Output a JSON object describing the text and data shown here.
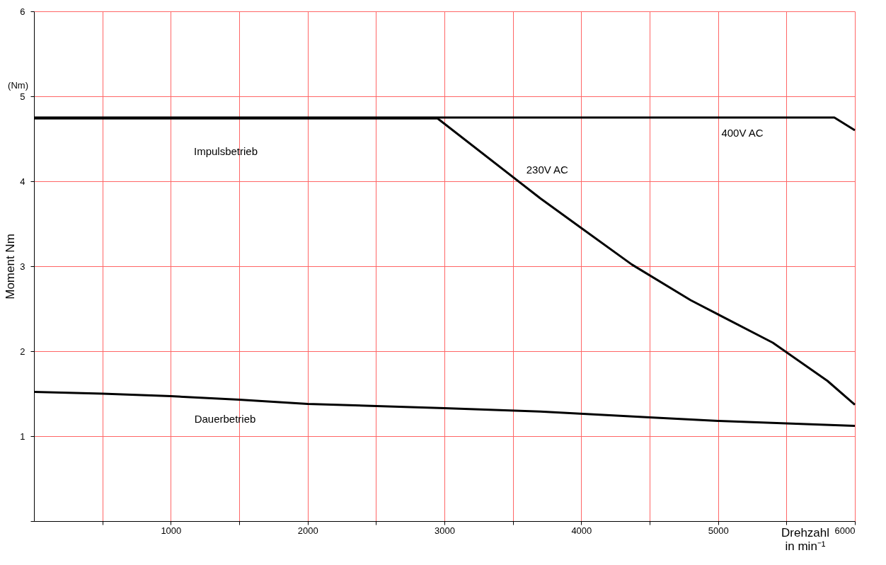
{
  "chart_data": {
    "type": "line",
    "xlabel": "Drehzahl in min⁻¹",
    "ylabel": "Moment Nm",
    "xlim": [
      0,
      6000
    ],
    "ylim": [
      0,
      6
    ],
    "xticks": [
      {
        "value": 500,
        "label": null
      },
      1000,
      {
        "value": 1500,
        "label": null
      },
      2000,
      {
        "value": 2500,
        "label": null
      },
      3000,
      {
        "value": 3500,
        "label": null
      },
      4000,
      {
        "value": 4500,
        "label": null
      },
      5000,
      {
        "value": 5500,
        "label": null
      },
      6000
    ],
    "yticks": [
      {
        "value": 0,
        "label": null
      },
      1,
      2,
      3,
      4,
      5,
      6
    ],
    "grid": true,
    "legend": false,
    "marker": "none",
    "line_style": "solid",
    "series": [
      {
        "name": "400V AC",
        "color": "#000000",
        "x": [
          0,
          5850,
          6000
        ],
        "values": [
          4.75,
          4.75,
          4.6
        ]
      },
      {
        "name": "230V AC",
        "color": "#000000",
        "x": [
          0,
          2950,
          3700,
          4000,
          4370,
          4800,
          5400,
          5800,
          6000
        ],
        "values": [
          4.74,
          4.74,
          3.8,
          3.45,
          3.02,
          2.6,
          2.1,
          1.65,
          1.37
        ]
      },
      {
        "name": "Dauerbetrieb",
        "color": "#000000",
        "x": [
          0,
          500,
          1000,
          1500,
          2000,
          3000,
          3700,
          4500,
          5000,
          5500,
          6000
        ],
        "values": [
          1.52,
          1.5,
          1.47,
          1.43,
          1.38,
          1.33,
          1.29,
          1.22,
          1.18,
          1.15,
          1.12
        ]
      }
    ],
    "annotations": [
      "Impulsbetrieb",
      "(Nm)"
    ]
  }
}
